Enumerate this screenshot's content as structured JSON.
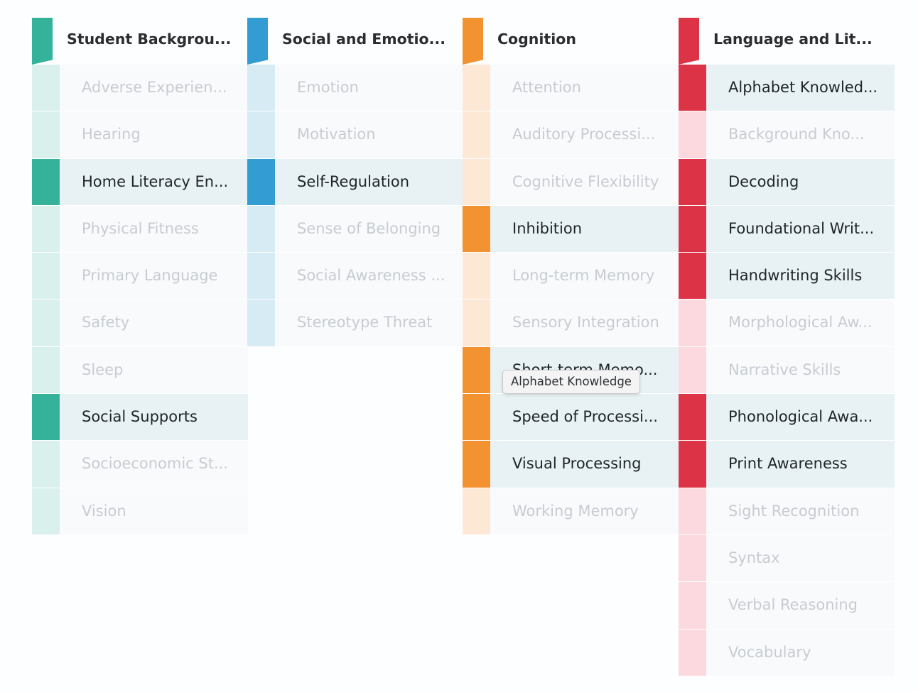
{
  "columns": [
    {
      "title": "Student Backgrou...",
      "active_color": "#35b39a",
      "inactive_color": "#d9f0ec",
      "items": [
        {
          "label": "Adverse Experien...",
          "active": false
        },
        {
          "label": "Hearing",
          "active": false
        },
        {
          "label": "Home Literacy En...",
          "active": true
        },
        {
          "label": "Physical Fitness",
          "active": false
        },
        {
          "label": "Primary Language",
          "active": false
        },
        {
          "label": "Safety",
          "active": false
        },
        {
          "label": "Sleep",
          "active": false
        },
        {
          "label": "Social Supports",
          "active": true
        },
        {
          "label": "Socioeconomic St...",
          "active": false
        },
        {
          "label": "Vision",
          "active": false
        }
      ]
    },
    {
      "title": "Social and Emotio...",
      "active_color": "#339cd3",
      "inactive_color": "#d7ebf5",
      "items": [
        {
          "label": "Emotion",
          "active": false
        },
        {
          "label": "Motivation",
          "active": false
        },
        {
          "label": "Self-Regulation",
          "active": true
        },
        {
          "label": "Sense of Belonging",
          "active": false
        },
        {
          "label": "Social Awareness ...",
          "active": false
        },
        {
          "label": "Stereotype Threat",
          "active": false
        }
      ]
    },
    {
      "title": "Cognition",
      "active_color": "#f29230",
      "inactive_color": "#fde8d6",
      "items": [
        {
          "label": "Attention",
          "active": false
        },
        {
          "label": "Auditory Processi...",
          "active": false
        },
        {
          "label": "Cognitive Flexibility",
          "active": false
        },
        {
          "label": "Inhibition",
          "active": true
        },
        {
          "label": "Long-term Memory",
          "active": false
        },
        {
          "label": "Sensory Integration",
          "active": false
        },
        {
          "label": "Short-term Memo...",
          "active": true
        },
        {
          "label": "Speed of Processi...",
          "active": true
        },
        {
          "label": "Visual Processing",
          "active": true
        },
        {
          "label": "Working Memory",
          "active": false
        }
      ]
    },
    {
      "title": "Language and Lit...",
      "active_color": "#dc3346",
      "inactive_color": "#fcd9de",
      "items": [
        {
          "label": "Alphabet Knowled...",
          "active": true
        },
        {
          "label": "Background Kno...",
          "active": false
        },
        {
          "label": "Decoding",
          "active": true
        },
        {
          "label": "Foundational Writ...",
          "active": true
        },
        {
          "label": "Handwriting Skills",
          "active": true
        },
        {
          "label": "Morphological Aw...",
          "active": false
        },
        {
          "label": "Narrative Skills",
          "active": false
        },
        {
          "label": "Phonological Awa...",
          "active": true
        },
        {
          "label": "Print Awareness",
          "active": true
        },
        {
          "label": "Sight Recognition",
          "active": false
        },
        {
          "label": "Syntax",
          "active": false
        },
        {
          "label": "Verbal Reasoning",
          "active": false
        },
        {
          "label": "Vocabulary",
          "active": false
        }
      ]
    }
  ],
  "tooltip": {
    "text": "Alphabet Knowledge"
  }
}
